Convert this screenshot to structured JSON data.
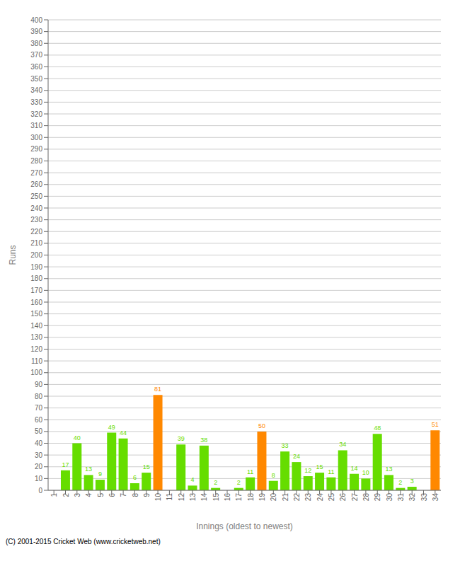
{
  "chart_data": {
    "type": "bar",
    "xlabel": "Innings (oldest to newest)",
    "ylabel": "Runs",
    "categories": [
      "1",
      "2",
      "3",
      "4",
      "5",
      "6",
      "7",
      "8",
      "9",
      "10",
      "11",
      "12",
      "13",
      "14",
      "15",
      "16",
      "17",
      "18",
      "19",
      "20",
      "21",
      "22",
      "23",
      "24",
      "25",
      "26",
      "27",
      "28",
      "29",
      "30",
      "31",
      "32",
      "33",
      "34"
    ],
    "values": [
      0,
      17,
      40,
      13,
      9,
      49,
      44,
      6,
      15,
      81,
      0,
      39,
      4,
      38,
      2,
      0,
      2,
      11,
      50,
      8,
      33,
      24,
      12,
      15,
      11,
      34,
      14,
      10,
      48,
      13,
      2,
      3,
      0,
      51
    ],
    "colors": [
      "#66dd00",
      "#66dd00",
      "#66dd00",
      "#66dd00",
      "#66dd00",
      "#66dd00",
      "#66dd00",
      "#66dd00",
      "#66dd00",
      "#ff8800",
      "#66dd00",
      "#66dd00",
      "#66dd00",
      "#66dd00",
      "#66dd00",
      "#66dd00",
      "#66dd00",
      "#66dd00",
      "#ff8800",
      "#66dd00",
      "#66dd00",
      "#66dd00",
      "#66dd00",
      "#66dd00",
      "#66dd00",
      "#66dd00",
      "#66dd00",
      "#66dd00",
      "#66dd00",
      "#66dd00",
      "#66dd00",
      "#66dd00",
      "#66dd00",
      "#ff8800"
    ],
    "ylim": [
      0,
      400
    ],
    "yticks": [
      0,
      10,
      20,
      30,
      40,
      50,
      60,
      70,
      80,
      90,
      100,
      110,
      120,
      130,
      140,
      150,
      160,
      170,
      180,
      190,
      200,
      210,
      220,
      230,
      240,
      250,
      260,
      270,
      280,
      290,
      300,
      310,
      320,
      330,
      340,
      350,
      360,
      370,
      380,
      390,
      400
    ],
    "grid": true,
    "data_labels": true,
    "annotations": [
      "(C) 2001-2015 Cricket Web (www.cricketweb.net)"
    ]
  }
}
